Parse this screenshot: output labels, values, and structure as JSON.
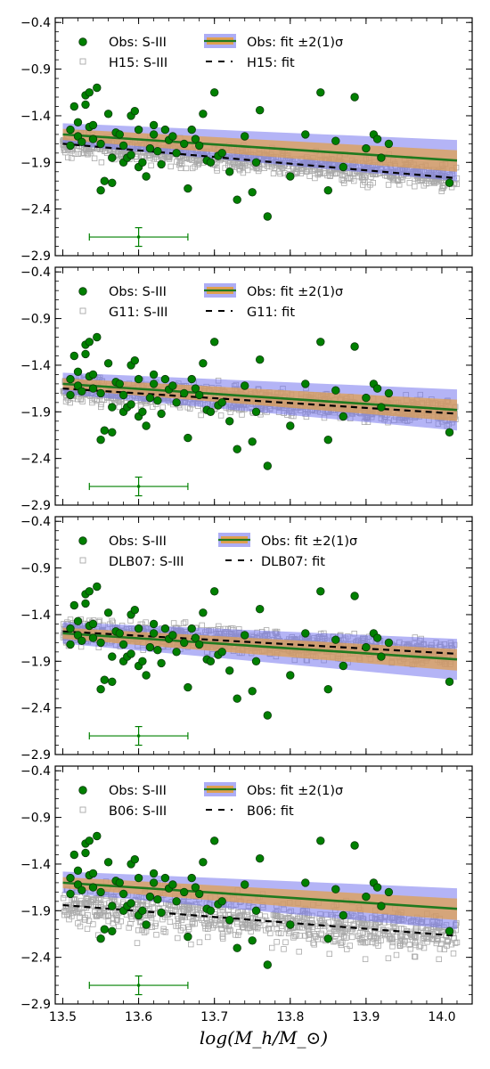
{
  "chart_data": {
    "type": "scatter",
    "x_axis": {
      "label": "log(M_h/M_⊙)",
      "range": [
        13.49,
        14.04
      ],
      "ticks": [
        13.5,
        13.6,
        13.7,
        13.8,
        13.9,
        14.0
      ],
      "tick_labels": [
        "13.5",
        "13.6",
        "13.7",
        "13.8",
        "13.9",
        "14.0"
      ]
    },
    "y_axis": {
      "range": [
        -2.9,
        -0.35
      ],
      "ticks": [
        -0.4,
        -0.9,
        -1.4,
        -1.9,
        -2.4,
        -2.9
      ],
      "tick_labels": [
        "−0.4",
        "−0.9",
        "−1.4",
        "−1.9",
        "−2.4",
        "−2.9"
      ]
    },
    "grid": false,
    "legend_placement": "top",
    "colors": {
      "obs_points": "#008000",
      "obs_edge": "#0a3a0a",
      "model_points": "#a9a9a9",
      "fit_line": "#1f7a1f",
      "band_1sigma": "#e0a050",
      "band_2sigma": "#7777ee",
      "model_fit": "#000000"
    },
    "observed": {
      "name": "Obs: S-III",
      "x": [
        13.51,
        13.51,
        13.515,
        13.52,
        13.52,
        13.525,
        13.53,
        13.53,
        13.535,
        13.535,
        13.54,
        13.54,
        13.545,
        13.55,
        13.55,
        13.555,
        13.56,
        13.565,
        13.565,
        13.57,
        13.575,
        13.58,
        13.58,
        13.585,
        13.59,
        13.59,
        13.595,
        13.6,
        13.6,
        13.605,
        13.61,
        13.615,
        13.62,
        13.62,
        13.625,
        13.63,
        13.635,
        13.64,
        13.645,
        13.65,
        13.66,
        13.665,
        13.67,
        13.675,
        13.68,
        13.685,
        13.69,
        13.695,
        13.7,
        13.705,
        13.71,
        13.72,
        13.73,
        13.74,
        13.75,
        13.755,
        13.76,
        13.77,
        13.8,
        13.82,
        13.84,
        13.85,
        13.86,
        13.87,
        13.885,
        13.9,
        13.91,
        13.915,
        13.92,
        13.93,
        14.01
      ],
      "y": [
        -1.72,
        -1.55,
        -1.3,
        -1.47,
        -1.62,
        -1.68,
        -1.28,
        -1.18,
        -1.15,
        -1.52,
        -1.5,
        -1.65,
        -1.1,
        -2.2,
        -1.7,
        -2.1,
        -1.38,
        -2.12,
        -1.85,
        -1.58,
        -1.6,
        -1.72,
        -1.9,
        -1.85,
        -1.82,
        -1.4,
        -1.35,
        -1.95,
        -1.55,
        -1.9,
        -2.05,
        -1.75,
        -1.6,
        -1.5,
        -1.78,
        -1.92,
        -1.55,
        -1.66,
        -1.62,
        -1.8,
        -1.7,
        -2.18,
        -1.55,
        -1.65,
        -1.72,
        -1.38,
        -1.88,
        -1.9,
        -1.15,
        -1.83,
        -1.8,
        -2.0,
        -2.3,
        -1.62,
        -2.22,
        -1.9,
        -1.34,
        -2.48,
        -2.05,
        -1.6,
        -1.15,
        -2.2,
        -1.67,
        -1.95,
        -1.2,
        -1.75,
        -1.6,
        -1.65,
        -1.85,
        -1.7,
        -2.12
      ],
      "error_bar": {
        "x": 13.6,
        "y": -2.7,
        "x_err": 0.065,
        "y_err": 0.1
      }
    },
    "fit_band": {
      "x": [
        13.5,
        14.02
      ]
    },
    "panels": [
      {
        "legend": {
          "obs_points": "Obs: S-III",
          "model_points": "H15: S-III",
          "obs_fit": "Obs: fit ±2(1)σ",
          "model_fit": "H15: fit"
        },
        "obs_fit": {
          "y": [
            -1.6,
            -1.88
          ]
        },
        "band_1sigma": {
          "y_low": [
            -1.66,
            -2.0
          ],
          "y_high": [
            -1.54,
            -1.77
          ]
        },
        "band_2sigma": {
          "y_low": [
            -1.71,
            -2.1
          ],
          "y_high": [
            -1.48,
            -1.66
          ]
        },
        "model_fit": {
          "y": [
            -1.7,
            -2.07
          ]
        }
      },
      {
        "legend": {
          "obs_points": "Obs: S-III",
          "model_points": "G11: S-III",
          "obs_fit": "Obs: fit ±2(1)σ",
          "model_fit": "G11: fit"
        },
        "obs_fit": {
          "y": [
            -1.6,
            -1.88
          ]
        },
        "band_1sigma": {
          "y_low": [
            -1.66,
            -2.0
          ],
          "y_high": [
            -1.54,
            -1.77
          ]
        },
        "band_2sigma": {
          "y_low": [
            -1.71,
            -2.1
          ],
          "y_high": [
            -1.48,
            -1.66
          ]
        },
        "model_fit": {
          "y": [
            -1.65,
            -1.92
          ]
        }
      },
      {
        "legend": {
          "obs_points": "Obs: S-III",
          "model_points": "DLB07: S-III",
          "obs_fit": "Obs: fit ±2(1)σ",
          "model_fit": "DLB07: fit"
        },
        "obs_fit": {
          "y": [
            -1.6,
            -1.88
          ]
        },
        "band_1sigma": {
          "y_low": [
            -1.66,
            -2.0
          ],
          "y_high": [
            -1.54,
            -1.77
          ]
        },
        "band_2sigma": {
          "y_low": [
            -1.71,
            -2.1
          ],
          "y_high": [
            -1.48,
            -1.66
          ]
        },
        "model_fit": {
          "y": [
            -1.58,
            -1.82
          ]
        }
      },
      {
        "legend": {
          "obs_points": "Obs: S-III",
          "model_points": "B06: S-III",
          "obs_fit": "Obs: fit ±2(1)σ",
          "model_fit": "B06: fit"
        },
        "obs_fit": {
          "y": [
            -1.6,
            -1.88
          ]
        },
        "band_1sigma": {
          "y_low": [
            -1.66,
            -2.0
          ],
          "y_high": [
            -1.54,
            -1.77
          ]
        },
        "band_2sigma": {
          "y_low": [
            -1.71,
            -2.1
          ],
          "y_high": [
            -1.48,
            -1.66
          ]
        },
        "model_fit": {
          "y": [
            -1.84,
            -2.17
          ]
        }
      }
    ]
  }
}
